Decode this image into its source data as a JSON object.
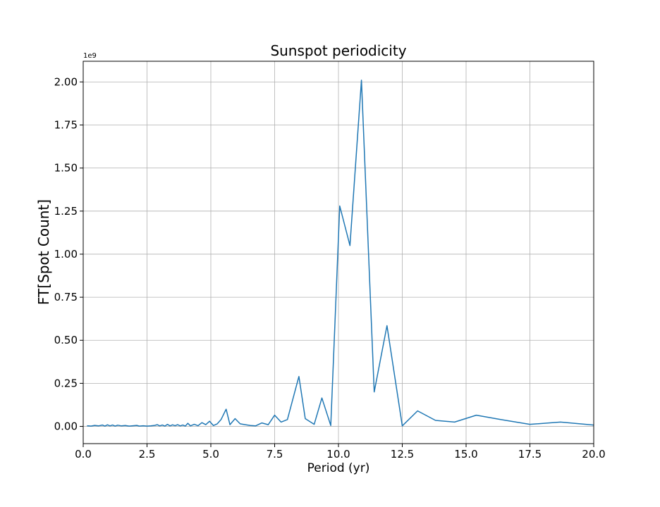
{
  "chart_data": {
    "type": "line",
    "title": "Sunspot periodicity",
    "xlabel": "Period (yr)",
    "ylabel": "FT[Spot Count]",
    "y_offset_text": "1e9",
    "xlim": [
      0.0,
      20.0
    ],
    "ylim": [
      -0.1,
      2.12
    ],
    "xticks": [
      0.0,
      2.5,
      5.0,
      7.5,
      10.0,
      12.5,
      15.0,
      17.5,
      20.0
    ],
    "xtick_labels": [
      "0.0",
      "2.5",
      "5.0",
      "7.5",
      "10.0",
      "12.5",
      "15.0",
      "17.5",
      "20.0"
    ],
    "yticks": [
      0.0,
      0.25,
      0.5,
      0.75,
      1.0,
      1.25,
      1.5,
      1.75,
      2.0
    ],
    "ytick_labels": [
      "0.00",
      "0.25",
      "0.50",
      "0.75",
      "1.00",
      "1.25",
      "1.50",
      "1.75",
      "2.00"
    ],
    "grid": true,
    "line_color": "#1f77b4",
    "series": [
      {
        "x": [
          0.15,
          0.3,
          0.45,
          0.6,
          0.75,
          0.85,
          0.95,
          1.05,
          1.15,
          1.25,
          1.35,
          1.5,
          1.65,
          1.8,
          1.95,
          2.1,
          2.2,
          2.35,
          2.5,
          2.65,
          2.8,
          2.9,
          3.0,
          3.1,
          3.2,
          3.3,
          3.4,
          3.5,
          3.6,
          3.7,
          3.8,
          3.9,
          4.0,
          4.1,
          4.2,
          4.35,
          4.5,
          4.65,
          4.8,
          4.95,
          5.1,
          5.25,
          5.4,
          5.6,
          5.75,
          5.95,
          6.15,
          6.35,
          6.55,
          6.75,
          7.0,
          7.25,
          7.5,
          7.75,
          8.0,
          8.45,
          8.7,
          9.05,
          9.35,
          9.7,
          10.05,
          10.45,
          10.9,
          11.4,
          11.9,
          12.5,
          13.1,
          13.8,
          14.55,
          15.4,
          16.35,
          17.5,
          18.7,
          20.0
        ],
        "y": [
          0.004,
          0.002,
          0.006,
          0.003,
          0.008,
          0.002,
          0.009,
          0.003,
          0.008,
          0.002,
          0.007,
          0.003,
          0.005,
          0.002,
          0.004,
          0.006,
          0.002,
          0.004,
          0.002,
          0.003,
          0.006,
          0.01,
          0.003,
          0.008,
          0.002,
          0.012,
          0.003,
          0.009,
          0.004,
          0.01,
          0.003,
          0.008,
          0.002,
          0.018,
          0.003,
          0.012,
          0.004,
          0.022,
          0.01,
          0.03,
          0.005,
          0.015,
          0.04,
          0.1,
          0.01,
          0.045,
          0.015,
          0.01,
          0.005,
          0.003,
          0.02,
          0.01,
          0.065,
          0.025,
          0.04,
          0.29,
          0.045,
          0.012,
          0.165,
          0.005,
          1.28,
          1.05,
          2.01,
          0.2,
          0.585,
          0.003,
          0.09,
          0.035,
          0.025,
          0.065,
          0.04,
          0.012,
          0.025,
          0.008
        ]
      }
    ]
  }
}
